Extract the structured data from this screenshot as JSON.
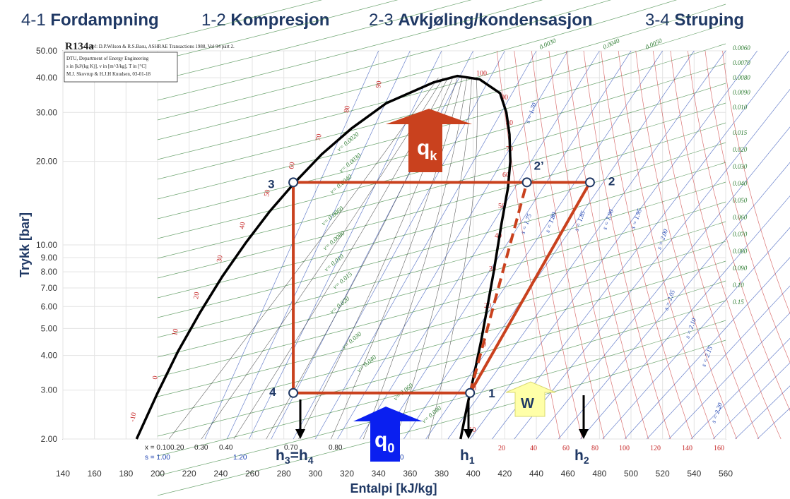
{
  "header": [
    {
      "num": "4-1",
      "name": "Fordampning"
    },
    {
      "num": "1-2",
      "name": "Kompresjon"
    },
    {
      "num": "2-3",
      "name": "Avkjøling/kondensasjon"
    },
    {
      "num": "3-4",
      "name": "Struping"
    }
  ],
  "chart": {
    "refrigerant": "R134a",
    "reference": "Ref: D.P.Wilson & R.S.Basu, ASHRAE Transactions 1988, Vol 94 part 2.",
    "info": [
      "DTU, Department of Energy Engineering",
      "s in [kJ/(kg K)], v in [m^3/kg], T in [°C]",
      "M.J. Skovrup & H.J.H Knudsen, 03-01-18"
    ],
    "x_axis_label": "Entalpi [kJ/kg]",
    "y_axis_label": "Trykk [bar]",
    "x_ticks": [
      140,
      160,
      180,
      200,
      220,
      240,
      260,
      280,
      300,
      320,
      340,
      360,
      380,
      400,
      420,
      440,
      460,
      480,
      500,
      520,
      540,
      560
    ],
    "x_tick_labels": [
      "140",
      "160",
      "180",
      "200",
      "220",
      "240",
      "260",
      "280",
      "300",
      "320",
      "340",
      "360",
      "380",
      "400",
      "420",
      "440",
      "460",
      "480",
      "500",
      "520",
      "540",
      "560"
    ],
    "y_ticks": [
      2,
      3,
      4,
      5,
      6,
      7,
      8,
      9,
      10,
      20,
      30,
      40,
      50
    ],
    "y_tick_labels": [
      "2.00",
      "3.00",
      "4.00",
      "5.00",
      "6.00",
      "7.00",
      "8.00",
      "9.00",
      "10.00",
      "20.00",
      "30.00",
      "40.00",
      "50.00"
    ],
    "quality_labels": [
      "x = 0.10",
      "0.20",
      "0.30",
      "0.40",
      "0.70",
      "0.80",
      "0.90"
    ],
    "entropy_bottom_labels": [
      "s = 1.00",
      "1.20",
      "1.60"
    ],
    "entropy_labels": [
      "s = 1.70",
      "s = 1.75",
      "s = 1.80",
      "s = 1.85",
      "s = 1.90",
      "s = 1.95",
      "s = 2.00",
      "s = 2.05",
      "s = 2.10",
      "s = 2.15",
      "s = 2.20"
    ],
    "volume_labels": [
      "0.0060",
      "0.0070",
      "0.0080",
      "0.0090",
      "0.010",
      "0.015",
      "0.020",
      "0.030",
      "0.040",
      "0.050",
      "0.060",
      "0.070",
      "0.080",
      "0.090",
      "0.10",
      "0.15"
    ],
    "volume_top_labels": [
      "0.0030",
      "0.0040",
      "0.0050"
    ],
    "dome_volume_labels": [
      "v= 0.0020",
      "v= 0.0030",
      "v= 0.0040",
      "v= 0.0060",
      "v= 0.0080",
      "v= 0.010",
      "v= 0.015",
      "v= 0.020",
      "v= 0.030",
      "v= 0.040",
      "v= 0.060",
      "v= 0.080"
    ],
    "temp_labels_liquid": [
      "-10",
      "0",
      "10",
      "20",
      "30",
      "40",
      "50",
      "60",
      "70",
      "80",
      "90"
    ],
    "temp_labels_vapor": [
      "100",
      "90",
      "80",
      "70",
      "60",
      "50",
      "40",
      "30",
      "20",
      "10",
      "0",
      "-10"
    ],
    "temp_labels_bottom": [
      "20",
      "40",
      "60",
      "80",
      "100",
      "120",
      "140",
      "160"
    ]
  },
  "cycle": {
    "points": [
      {
        "id": "1",
        "label": "1",
        "h": 398,
        "p": 2.93
      },
      {
        "id": "2",
        "label": "2",
        "h": 474,
        "p": 16.8
      },
      {
        "id": "2p",
        "label": "2’",
        "h": 434,
        "p": 16.8
      },
      {
        "id": "3",
        "label": "3",
        "h": 286,
        "p": 16.8
      },
      {
        "id": "4",
        "label": "4",
        "h": 286,
        "p": 2.93
      }
    ],
    "qk": {
      "base": "q",
      "sub": "k"
    },
    "q0": {
      "base": "q",
      "sub": "0"
    },
    "work": "W",
    "h_labels": [
      {
        "base": "h",
        "sub": "3",
        "mid": "=h",
        "sub2": "4"
      },
      {
        "base": "h",
        "sub": "1"
      },
      {
        "base": "h",
        "sub": "2"
      }
    ]
  },
  "colors": {
    "header_text": "#1f3864",
    "cycle": "#c9411e",
    "qk_arrow": "#c9411e",
    "q0_arrow": "#0a1ff0",
    "work_arrow": "#ffffa8",
    "isentrope": "#1a3fb0",
    "isochore": "#2e7d32",
    "isotherm": "#c62828"
  }
}
